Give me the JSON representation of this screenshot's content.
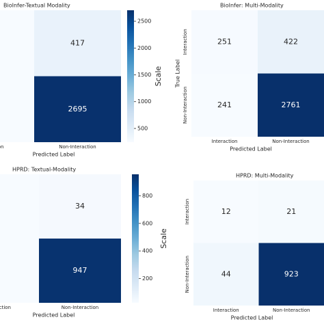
{
  "chart_data": [
    {
      "type": "heatmap",
      "title": "BioInfer-Textual Modality",
      "x_label": "Predicted Label",
      "x_categories": [
        "Interaction",
        "Non-Interaction"
      ],
      "values": [
        [
          null,
          417
        ],
        [
          null,
          2695
        ]
      ],
      "colors": [
        "#f7fbff",
        "#deebf7",
        "#c6dbef",
        "#9ecae1",
        "#6baed6",
        "#4292c6",
        "#2171b5",
        "#08519c",
        "#08306b"
      ],
      "colorbar": {
        "label": "Scale",
        "lim": [
          244,
          2705
        ],
        "ticks": [
          500,
          1000,
          1500,
          2000,
          2500
        ]
      }
    },
    {
      "type": "heatmap",
      "title": "BioInfer: Multi-Modality",
      "x_label": "Predicted Label",
      "y_label": "True Label",
      "x_categories": [
        "Interaction",
        "Non-Interaction"
      ],
      "y_categories": [
        "Interaction",
        "Non-Interaction"
      ],
      "values": [
        [
          251,
          422
        ],
        [
          241,
          2761
        ]
      ],
      "colors": [
        "#f7fbff",
        "#deebf7",
        "#c6dbef",
        "#9ecae1",
        "#6baed6",
        "#4292c6",
        "#2171b5",
        "#08519c",
        "#08306b"
      ]
    },
    {
      "type": "heatmap",
      "title": "HPRD: Textual-Modality",
      "x_label": "Predicted Label",
      "x_categories": [
        "Interaction",
        "Non-Interaction"
      ],
      "values": [
        [
          null,
          34
        ],
        [
          null,
          947
        ]
      ],
      "colors": [
        "#f7fbff",
        "#deebf7",
        "#c6dbef",
        "#9ecae1",
        "#6baed6",
        "#4292c6",
        "#2171b5",
        "#08519c",
        "#08306b"
      ],
      "colorbar": {
        "label": "Scale",
        "lim": [
          23,
          957
        ],
        "ticks": [
          200,
          400,
          600,
          800
        ]
      }
    },
    {
      "type": "heatmap",
      "title": "HPRD: Multi-Modality",
      "x_label": "Predicted Label",
      "x_categories": [
        "Interaction",
        "Non-Interaction"
      ],
      "y_categories": [
        "Interaction",
        "Non-Interaction"
      ],
      "values": [
        [
          12,
          21
        ],
        [
          44,
          923
        ]
      ],
      "colors": [
        "#f7fbff",
        "#deebf7",
        "#c6dbef",
        "#9ecae1",
        "#6baed6",
        "#4292c6",
        "#2171b5",
        "#08519c",
        "#08306b"
      ]
    }
  ]
}
